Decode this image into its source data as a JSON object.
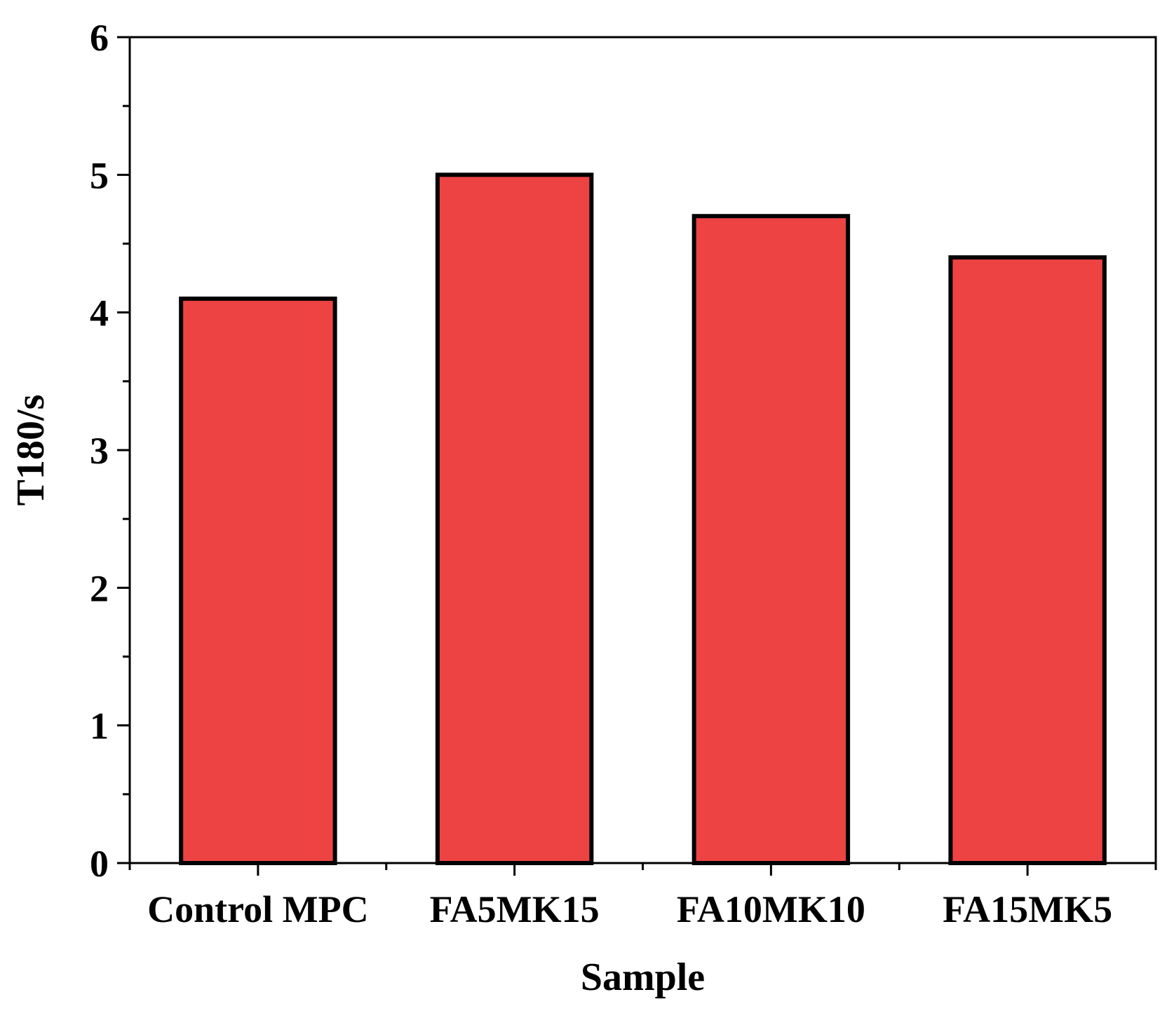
{
  "chart_data": {
    "type": "bar",
    "title": "",
    "xlabel": "Sample",
    "ylabel": "T180/s",
    "categories": [
      "Control MPC",
      "FA5MK15",
      "FA10MK10",
      "FA15MK5"
    ],
    "values": [
      4.1,
      5.0,
      4.7,
      4.4
    ],
    "ylim": [
      0,
      6
    ],
    "yticks": [
      "0",
      "1",
      "2",
      "3",
      "4",
      "5",
      "6"
    ],
    "grid": false,
    "legend": "none",
    "colors": {
      "bar_fill": "#EE4343",
      "bar_stroke": "#000000",
      "axis": "#000000"
    }
  }
}
